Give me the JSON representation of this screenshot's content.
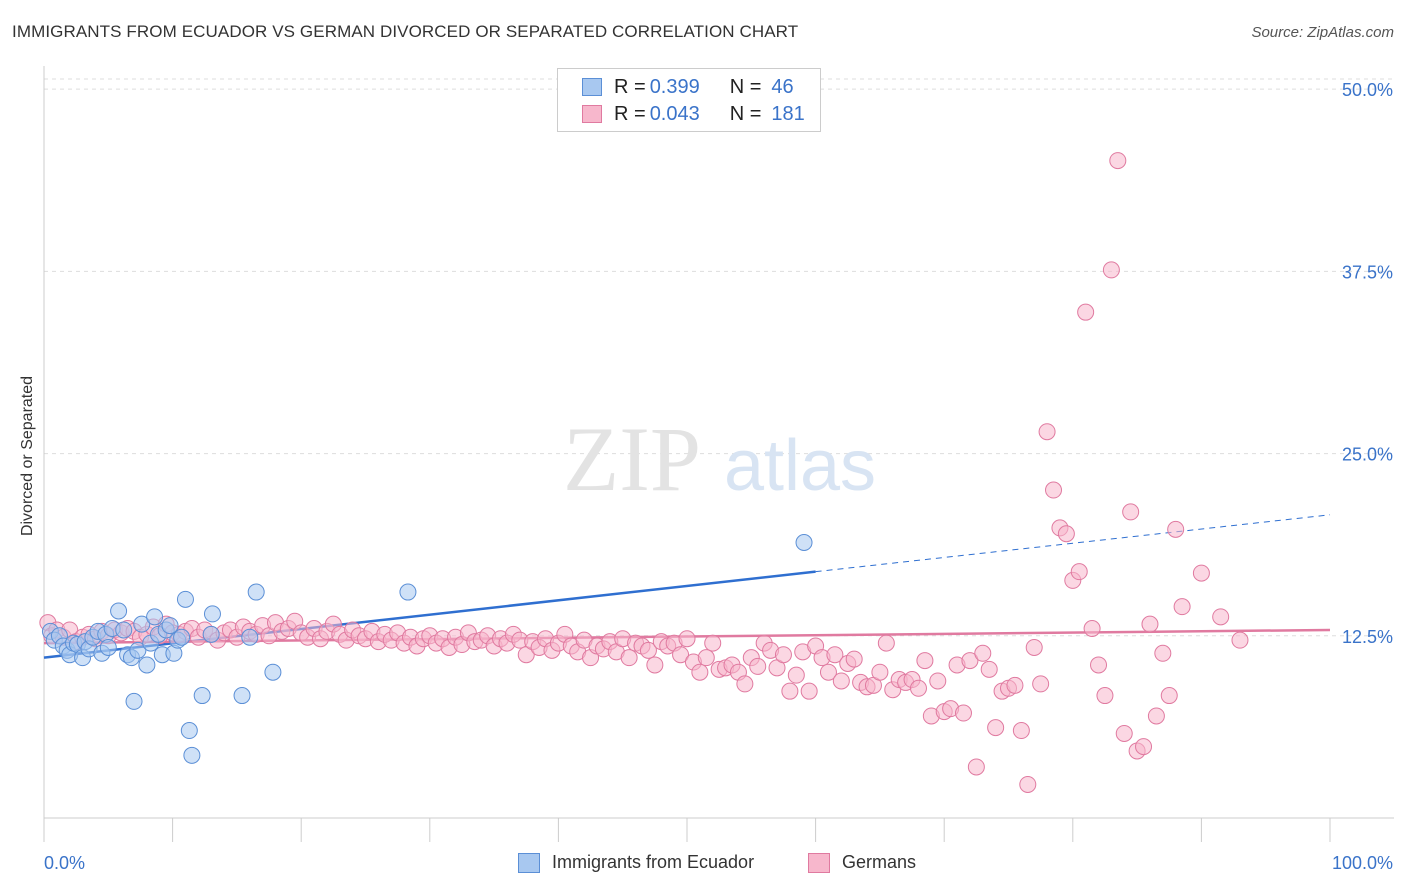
{
  "title": "IMMIGRANTS FROM ECUADOR VS GERMAN DIVORCED OR SEPARATED CORRELATION CHART",
  "source": "Source: ZipAtlas.com",
  "watermark": {
    "zip": "ZIP",
    "atlas": "atlas"
  },
  "legend": {
    "rows": [
      {
        "r_label": "R =",
        "r_value": "0.399",
        "n_label": "N =",
        "n_value": "46",
        "color": "#a8c8f0",
        "border": "#5b8fd6"
      },
      {
        "r_label": "R =",
        "r_value": "0.043",
        "n_label": "N =",
        "n_value": "181",
        "color": "#f7b7cc",
        "border": "#e07aa0"
      }
    ]
  },
  "bottom_legend": {
    "items": [
      {
        "label": "Immigrants from Ecuador",
        "color": "#a8c8f0",
        "border": "#5b8fd6"
      },
      {
        "label": "Germans",
        "color": "#f7b7cc",
        "border": "#e07aa0"
      }
    ]
  },
  "chart_data": {
    "type": "scatter",
    "title": "IMMIGRANTS FROM ECUADOR VS GERMAN DIVORCED OR SEPARATED CORRELATION CHART",
    "xlabel": "",
    "ylabel": "Divorced or Separated",
    "xlim": [
      0,
      100
    ],
    "ylim": [
      0,
      52
    ],
    "x_tick_labels": [
      "0.0%",
      "100.0%"
    ],
    "y_ticks": [
      12.5,
      25.0,
      37.5,
      50.0
    ],
    "y_tick_labels": [
      "12.5%",
      "25.0%",
      "37.5%",
      "50.0%"
    ],
    "grid": true,
    "legend_position": "top-center",
    "series": [
      {
        "name": "Immigrants from Ecuador",
        "color": "#a8c8f0",
        "stroke": "#5b8fd6",
        "trend_color": "#2f6fd0",
        "points": [
          [
            0.5,
            12.8
          ],
          [
            0.8,
            12.2
          ],
          [
            1.2,
            12.5
          ],
          [
            1.5,
            11.8
          ],
          [
            1.8,
            11.5
          ],
          [
            2.0,
            11.2
          ],
          [
            2.3,
            12.0
          ],
          [
            2.6,
            11.9
          ],
          [
            3.0,
            11.0
          ],
          [
            3.2,
            12.1
          ],
          [
            3.5,
            11.6
          ],
          [
            3.8,
            12.4
          ],
          [
            4.2,
            12.8
          ],
          [
            4.5,
            11.3
          ],
          [
            4.8,
            12.6
          ],
          [
            5.0,
            11.7
          ],
          [
            5.3,
            13.0
          ],
          [
            5.8,
            14.2
          ],
          [
            6.2,
            12.9
          ],
          [
            6.5,
            11.2
          ],
          [
            6.8,
            11.0
          ],
          [
            7.0,
            8.0
          ],
          [
            7.3,
            11.5
          ],
          [
            7.6,
            13.3
          ],
          [
            8.0,
            10.5
          ],
          [
            8.3,
            12.0
          ],
          [
            8.6,
            13.8
          ],
          [
            8.9,
            12.6
          ],
          [
            9.2,
            11.2
          ],
          [
            9.5,
            12.9
          ],
          [
            9.8,
            13.2
          ],
          [
            10.1,
            11.3
          ],
          [
            10.4,
            12.2
          ],
          [
            10.7,
            12.4
          ],
          [
            11.0,
            15.0
          ],
          [
            11.3,
            6.0
          ],
          [
            11.5,
            4.3
          ],
          [
            12.3,
            8.4
          ],
          [
            13.0,
            12.6
          ],
          [
            13.1,
            14.0
          ],
          [
            15.4,
            8.4
          ],
          [
            16.0,
            12.4
          ],
          [
            16.5,
            15.5
          ],
          [
            17.8,
            10.0
          ],
          [
            28.3,
            15.5
          ],
          [
            59.1,
            18.9
          ]
        ],
        "trend": {
          "x": [
            0,
            60
          ],
          "y": [
            11.0,
            16.9
          ]
        },
        "trend_dashed": {
          "x": [
            60,
            100
          ],
          "y": [
            16.9,
            20.8
          ]
        }
      },
      {
        "name": "Germans",
        "color": "#f7b7cc",
        "stroke": "#e07aa0",
        "trend_color": "#e07aa0",
        "points": [
          [
            0.3,
            13.4
          ],
          [
            0.6,
            12.5
          ],
          [
            1.0,
            12.9
          ],
          [
            1.5,
            12.4
          ],
          [
            2.0,
            12.9
          ],
          [
            2.5,
            12.1
          ],
          [
            3.0,
            12.4
          ],
          [
            3.5,
            12.6
          ],
          [
            4.0,
            12.3
          ],
          [
            4.5,
            12.8
          ],
          [
            5.0,
            12.5
          ],
          [
            5.5,
            12.9
          ],
          [
            6.0,
            12.7
          ],
          [
            6.5,
            13.0
          ],
          [
            7.0,
            12.8
          ],
          [
            7.5,
            12.4
          ],
          [
            8.0,
            12.6
          ],
          [
            8.5,
            13.1
          ],
          [
            9.0,
            12.5
          ],
          [
            9.5,
            13.3
          ],
          [
            10.0,
            12.7
          ],
          [
            10.5,
            12.6
          ],
          [
            11.0,
            12.8
          ],
          [
            11.5,
            13.0
          ],
          [
            12.0,
            12.4
          ],
          [
            12.5,
            12.9
          ],
          [
            13.0,
            12.6
          ],
          [
            13.5,
            12.2
          ],
          [
            14.0,
            12.7
          ],
          [
            14.5,
            12.9
          ],
          [
            15.0,
            12.4
          ],
          [
            15.5,
            13.1
          ],
          [
            16.0,
            12.8
          ],
          [
            16.5,
            12.6
          ],
          [
            17.0,
            13.2
          ],
          [
            17.5,
            12.5
          ],
          [
            18.0,
            13.4
          ],
          [
            18.5,
            12.8
          ],
          [
            19.0,
            13.0
          ],
          [
            19.5,
            13.5
          ],
          [
            20.0,
            12.7
          ],
          [
            20.5,
            12.4
          ],
          [
            21.0,
            13.0
          ],
          [
            21.5,
            12.3
          ],
          [
            22.0,
            12.8
          ],
          [
            22.5,
            13.3
          ],
          [
            23.0,
            12.6
          ],
          [
            23.5,
            12.2
          ],
          [
            24.0,
            12.9
          ],
          [
            24.5,
            12.5
          ],
          [
            25.0,
            12.3
          ],
          [
            25.5,
            12.8
          ],
          [
            26.0,
            12.1
          ],
          [
            26.5,
            12.6
          ],
          [
            27.0,
            12.2
          ],
          [
            27.5,
            12.7
          ],
          [
            28.0,
            12.0
          ],
          [
            28.5,
            12.4
          ],
          [
            29.0,
            11.8
          ],
          [
            29.5,
            12.3
          ],
          [
            30.0,
            12.5
          ],
          [
            30.5,
            12.0
          ],
          [
            31.0,
            12.3
          ],
          [
            31.5,
            11.7
          ],
          [
            32.0,
            12.4
          ],
          [
            32.5,
            11.9
          ],
          [
            33.0,
            12.7
          ],
          [
            33.5,
            12.1
          ],
          [
            34.0,
            12.2
          ],
          [
            34.5,
            12.5
          ],
          [
            35.0,
            11.8
          ],
          [
            35.5,
            12.3
          ],
          [
            36.0,
            12.0
          ],
          [
            36.5,
            12.6
          ],
          [
            37.0,
            12.2
          ],
          [
            37.5,
            11.2
          ],
          [
            38.0,
            12.1
          ],
          [
            38.5,
            11.7
          ],
          [
            39.0,
            12.3
          ],
          [
            39.5,
            11.5
          ],
          [
            40.0,
            12.0
          ],
          [
            40.5,
            12.6
          ],
          [
            41.0,
            11.8
          ],
          [
            41.5,
            11.4
          ],
          [
            42.0,
            12.2
          ],
          [
            42.5,
            11.0
          ],
          [
            43.0,
            11.8
          ],
          [
            43.5,
            11.6
          ],
          [
            44.0,
            12.1
          ],
          [
            44.5,
            11.4
          ],
          [
            45.0,
            12.3
          ],
          [
            45.5,
            11.0
          ],
          [
            46.0,
            12.0
          ],
          [
            46.5,
            11.8
          ],
          [
            47.0,
            11.5
          ],
          [
            47.5,
            10.5
          ],
          [
            48.0,
            12.1
          ],
          [
            48.5,
            11.8
          ],
          [
            49.0,
            12.0
          ],
          [
            49.5,
            11.2
          ],
          [
            50.0,
            12.3
          ],
          [
            50.5,
            10.7
          ],
          [
            51.0,
            10.0
          ],
          [
            51.5,
            11.0
          ],
          [
            52.0,
            12.0
          ],
          [
            52.5,
            10.2
          ],
          [
            53.0,
            10.3
          ],
          [
            53.5,
            10.5
          ],
          [
            54.0,
            10.0
          ],
          [
            54.5,
            9.2
          ],
          [
            55.0,
            11.0
          ],
          [
            55.5,
            10.4
          ],
          [
            56.0,
            12.0
          ],
          [
            56.5,
            11.5
          ],
          [
            57.0,
            10.3
          ],
          [
            57.5,
            11.2
          ],
          [
            58.0,
            8.7
          ],
          [
            58.5,
            9.8
          ],
          [
            59.0,
            11.4
          ],
          [
            59.5,
            8.7
          ],
          [
            60.0,
            11.8
          ],
          [
            60.5,
            11.0
          ],
          [
            61.0,
            10.0
          ],
          [
            61.5,
            11.2
          ],
          [
            62.0,
            9.4
          ],
          [
            62.5,
            10.6
          ],
          [
            63.0,
            10.9
          ],
          [
            63.5,
            9.3
          ],
          [
            64.0,
            9.0
          ],
          [
            64.5,
            9.1
          ],
          [
            65.0,
            10.0
          ],
          [
            65.5,
            12.0
          ],
          [
            66.0,
            8.8
          ],
          [
            66.5,
            9.5
          ],
          [
            67.0,
            9.3
          ],
          [
            67.5,
            9.5
          ],
          [
            68.0,
            8.9
          ],
          [
            68.5,
            10.8
          ],
          [
            69.0,
            7.0
          ],
          [
            69.5,
            9.4
          ],
          [
            70.0,
            7.3
          ],
          [
            70.5,
            7.5
          ],
          [
            71.0,
            10.5
          ],
          [
            71.5,
            7.2
          ],
          [
            72.0,
            10.8
          ],
          [
            72.5,
            3.5
          ],
          [
            73.0,
            11.3
          ],
          [
            73.5,
            10.2
          ],
          [
            74.0,
            6.2
          ],
          [
            74.5,
            8.7
          ],
          [
            75.0,
            8.9
          ],
          [
            75.5,
            9.1
          ],
          [
            76.0,
            6.0
          ],
          [
            76.5,
            2.3
          ],
          [
            77.0,
            11.7
          ],
          [
            77.5,
            9.2
          ],
          [
            78.0,
            26.5
          ],
          [
            78.5,
            22.5
          ],
          [
            79.0,
            19.9
          ],
          [
            79.5,
            19.5
          ],
          [
            80.0,
            16.3
          ],
          [
            80.5,
            16.9
          ],
          [
            81.0,
            34.7
          ],
          [
            81.5,
            13.0
          ],
          [
            82.0,
            10.5
          ],
          [
            82.5,
            8.4
          ],
          [
            83.0,
            37.6
          ],
          [
            83.5,
            45.1
          ],
          [
            84.0,
            5.8
          ],
          [
            84.5,
            21.0
          ],
          [
            85.0,
            4.6
          ],
          [
            85.5,
            4.9
          ],
          [
            86.0,
            13.3
          ],
          [
            86.5,
            7.0
          ],
          [
            87.0,
            11.3
          ],
          [
            87.5,
            8.4
          ],
          [
            88.0,
            19.8
          ],
          [
            88.5,
            14.5
          ],
          [
            90.0,
            16.8
          ],
          [
            91.5,
            13.8
          ],
          [
            93.0,
            12.2
          ]
        ],
        "trend": {
          "x": [
            0,
            100
          ],
          "y": [
            12.0,
            12.9
          ]
        }
      }
    ]
  }
}
